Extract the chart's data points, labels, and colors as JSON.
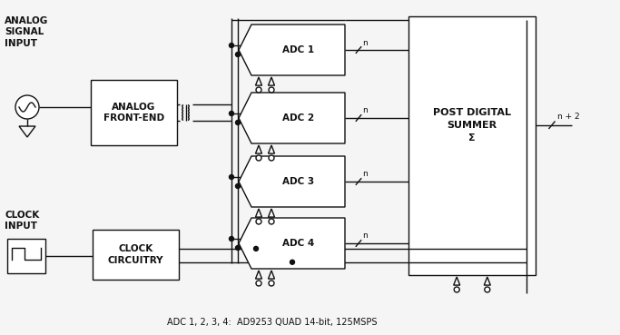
{
  "bg_color": "#f5f5f5",
  "line_color": "#111111",
  "lw": 1.0,
  "label_fs": 7.5,
  "small_fs": 6.5,
  "caption": "ADC 1, 2, 3, 4:  AD9253 QUAD 14-bit, 125MSPS",
  "adc_labels": [
    "ADC 1",
    "ADC 2",
    "ADC 3",
    "ADC 4"
  ],
  "summer_label": "POST DIGITAL\nSUMMER\nΣ",
  "analog_label": "ANALOG\nFRONT-END",
  "clock_label": "CLOCK\nCIRCUITRY",
  "analog_input_label": "ANALOG\nSIGNAL\nINPUT",
  "clock_input_label": "CLOCK\nINPUT",
  "n_label": "n",
  "n2_label": "n + 2",
  "figw": 6.83,
  "figh": 3.69,
  "dpi": 100
}
